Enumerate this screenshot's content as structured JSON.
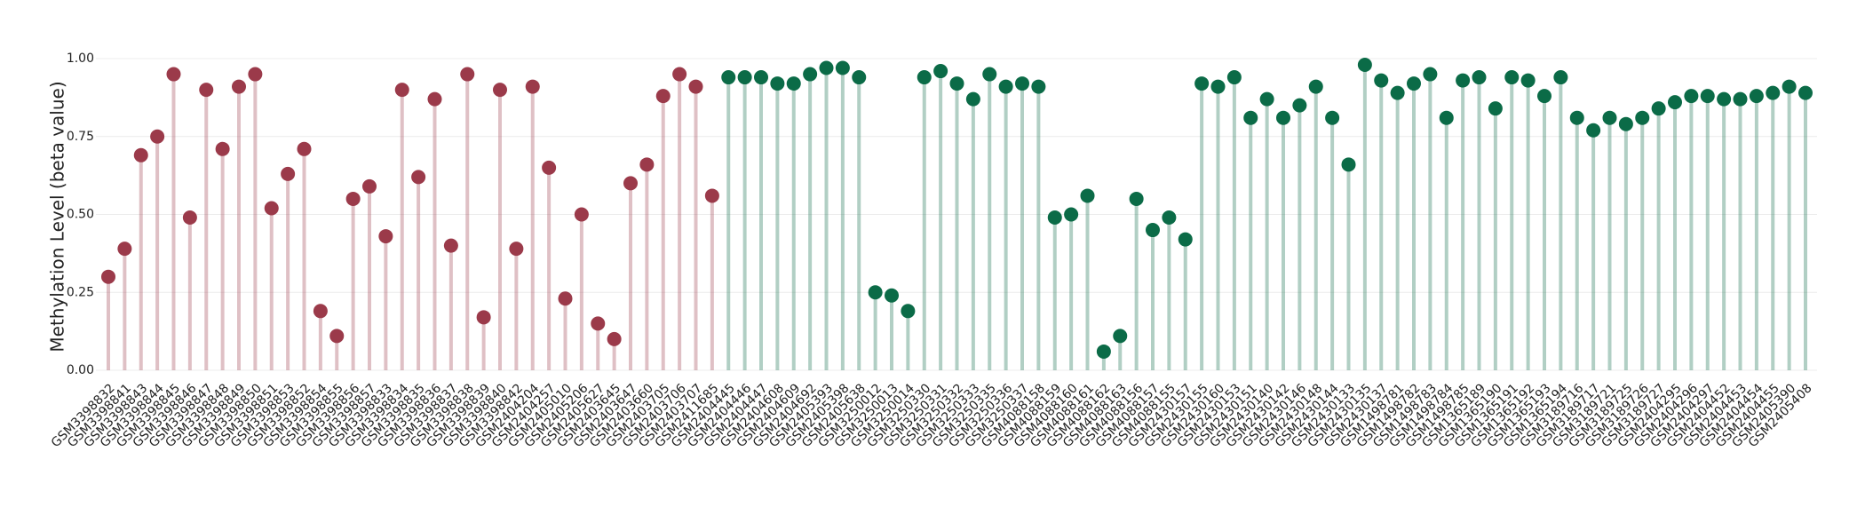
{
  "chart_data": {
    "type": "lollipop",
    "y_label": "Methylation Level (beta value)",
    "ylim": [
      0,
      1
    ],
    "yticks": [
      {
        "value": 0,
        "label": "0.00"
      },
      {
        "value": 0.25,
        "label": "0.25"
      },
      {
        "value": 0.5,
        "label": "0.50"
      },
      {
        "value": 0.75,
        "label": "0.75"
      },
      {
        "value": 1,
        "label": "1.00"
      }
    ],
    "grid": true,
    "categories": [
      "GSM3398832",
      "GSM3398841",
      "GSM3398843",
      "GSM3398844",
      "GSM3398845",
      "GSM3398846",
      "GSM3398847",
      "GSM3398848",
      "GSM3398849",
      "GSM3398850",
      "GSM3398851",
      "GSM3398853",
      "GSM3398852",
      "GSM3398854",
      "GSM3398855",
      "GSM3398856",
      "GSM3398857",
      "GSM3398833",
      "GSM3398834",
      "GSM3398835",
      "GSM3398836",
      "GSM3398837",
      "GSM3398838",
      "GSM3398839",
      "GSM3398840",
      "GSM3398842",
      "GSM2404204",
      "GSM2404257",
      "GSM2405010",
      "GSM2405206",
      "GSM2405627",
      "GSM2403645",
      "GSM2403647",
      "GSM2403660",
      "GSM2403705",
      "GSM2403706",
      "GSM2403707",
      "GSM2411685",
      "GSM2404445",
      "GSM2404446",
      "GSM2404447",
      "GSM2404608",
      "GSM2404609",
      "GSM2404692",
      "GSM2405393",
      "GSM2405398",
      "GSM2405638",
      "GSM3250012",
      "GSM3250013",
      "GSM3250014",
      "GSM3250330",
      "GSM3250331",
      "GSM3250332",
      "GSM3250333",
      "GSM3250335",
      "GSM3250336",
      "GSM3250337",
      "GSM4088158",
      "GSM4088159",
      "GSM4088160",
      "GSM4088161",
      "GSM4088162",
      "GSM4088163",
      "GSM4088156",
      "GSM4088157",
      "GSM4088155",
      "GSM2430157",
      "GSM2430155",
      "GSM2430160",
      "GSM2430153",
      "GSM2430151",
      "GSM2430140",
      "GSM2430142",
      "GSM2430146",
      "GSM2430148",
      "GSM2430144",
      "GSM2430133",
      "GSM2430135",
      "GSM2430137",
      "GSM1498781",
      "GSM1498782",
      "GSM1498783",
      "GSM1498784",
      "GSM1498785",
      "GSM1365189",
      "GSM1365190",
      "GSM1365191",
      "GSM1365192",
      "GSM1365193",
      "GSM1365194",
      "GSM3189716",
      "GSM3189717",
      "GSM3189721",
      "GSM3189725",
      "GSM3189726",
      "GSM3189727",
      "GSM2404295",
      "GSM2404296",
      "GSM2404297",
      "GSM2404452",
      "GSM2404453",
      "GSM2404454",
      "GSM2404455",
      "GSM2405390",
      "GSM2405408"
    ],
    "values": [
      0.3,
      0.39,
      0.69,
      0.75,
      0.95,
      0.49,
      0.9,
      0.71,
      0.91,
      0.95,
      0.52,
      0.63,
      0.71,
      0.19,
      0.11,
      0.55,
      0.59,
      0.43,
      0.9,
      0.62,
      0.87,
      0.4,
      0.95,
      0.17,
      0.9,
      0.39,
      0.91,
      0.65,
      0.23,
      0.5,
      0.15,
      0.1,
      0.6,
      0.66,
      0.88,
      0.95,
      0.91,
      0.56,
      0.94,
      0.94,
      0.94,
      0.92,
      0.92,
      0.95,
      0.97,
      0.97,
      0.94,
      0.25,
      0.24,
      0.19,
      0.94,
      0.96,
      0.92,
      0.87,
      0.95,
      0.91,
      0.92,
      0.91,
      0.49,
      0.5,
      0.56,
      0.06,
      0.11,
      0.55,
      0.45,
      0.49,
      0.42,
      0.92,
      0.91,
      0.94,
      0.81,
      0.87,
      0.81,
      0.85,
      0.91,
      0.81,
      0.66,
      0.98,
      0.93,
      0.89,
      0.92,
      0.95,
      0.81,
      0.93,
      0.94,
      0.84,
      0.94,
      0.93,
      0.88,
      0.94,
      0.81,
      0.77,
      0.81,
      0.79,
      0.81,
      0.84,
      0.86,
      0.88,
      0.88,
      0.87,
      0.87,
      0.88,
      0.89,
      0.91,
      0.89
    ],
    "colors": [
      "#9b3a4a",
      "#9b3a4a",
      "#9b3a4a",
      "#9b3a4a",
      "#9b3a4a",
      "#9b3a4a",
      "#9b3a4a",
      "#9b3a4a",
      "#9b3a4a",
      "#9b3a4a",
      "#9b3a4a",
      "#9b3a4a",
      "#9b3a4a",
      "#9b3a4a",
      "#9b3a4a",
      "#9b3a4a",
      "#9b3a4a",
      "#9b3a4a",
      "#9b3a4a",
      "#9b3a4a",
      "#9b3a4a",
      "#9b3a4a",
      "#9b3a4a",
      "#9b3a4a",
      "#9b3a4a",
      "#9b3a4a",
      "#9b3a4a",
      "#9b3a4a",
      "#9b3a4a",
      "#9b3a4a",
      "#9b3a4a",
      "#9b3a4a",
      "#9b3a4a",
      "#9b3a4a",
      "#9b3a4a",
      "#9b3a4a",
      "#9b3a4a",
      "#9b3a4a",
      "#0b6b47",
      "#0b6b47",
      "#0b6b47",
      "#0b6b47",
      "#0b6b47",
      "#0b6b47",
      "#0b6b47",
      "#0b6b47",
      "#0b6b47",
      "#0b6b47",
      "#0b6b47",
      "#0b6b47",
      "#0b6b47",
      "#0b6b47",
      "#0b6b47",
      "#0b6b47",
      "#0b6b47",
      "#0b6b47",
      "#0b6b47",
      "#0b6b47",
      "#0b6b47",
      "#0b6b47",
      "#0b6b47",
      "#0b6b47",
      "#0b6b47",
      "#0b6b47",
      "#0b6b47",
      "#0b6b47",
      "#0b6b47",
      "#0b6b47",
      "#0b6b47",
      "#0b6b47",
      "#0b6b47",
      "#0b6b47",
      "#0b6b47",
      "#0b6b47",
      "#0b6b47",
      "#0b6b47",
      "#0b6b47",
      "#0b6b47",
      "#0b6b47",
      "#0b6b47",
      "#0b6b47",
      "#0b6b47",
      "#0b6b47",
      "#0b6b47",
      "#0b6b47",
      "#0b6b47",
      "#0b6b47",
      "#0b6b47",
      "#0b6b47",
      "#0b6b47",
      "#0b6b47",
      "#0b6b47",
      "#0b6b47",
      "#0b6b47",
      "#0b6b47",
      "#0b6b47",
      "#0b6b47",
      "#0b6b47",
      "#0b6b47",
      "#0b6b47",
      "#0b6b47",
      "#0b6b47",
      "#0b6b47",
      "#0b6b47",
      "#0b6b47",
      "#0b6b47",
      "#0b6b47"
    ]
  }
}
